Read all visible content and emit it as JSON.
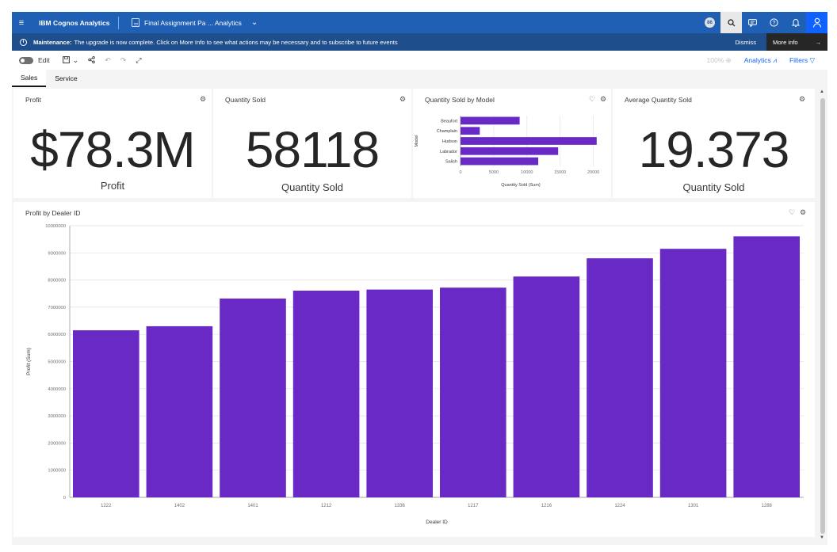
{
  "topbar": {
    "brand": "IBM Cognos Analytics",
    "document_title": "Final Assignment Pa ... Analytics",
    "badge": "86"
  },
  "icons": {
    "menu": "hamburger-icon",
    "document": "dashboard-icon",
    "search": "search-icon",
    "chat": "chat-icon",
    "help": "help-icon",
    "notifications": "bell-icon",
    "user": "user-icon"
  },
  "maintenance": {
    "label": "Maintenance:",
    "message": "The upgrade is now complete. Click on More Info to see what actions may be necessary and to subscribe to future events",
    "dismiss": "Dismiss",
    "more_info": "More info"
  },
  "toolbar": {
    "edit_label": "Edit",
    "zoom": "100%",
    "analytics": "Analytics",
    "filters": "Filters"
  },
  "tabs": [
    {
      "label": "Sales",
      "active": true
    },
    {
      "label": "Service",
      "active": false
    }
  ],
  "widgets": {
    "profit": {
      "title": "Profit",
      "value": "$78.3M",
      "label": "Profit"
    },
    "quantity": {
      "title": "Quantity Sold",
      "value": "58118",
      "label": "Quantity Sold"
    },
    "model_chart": {
      "title": "Quantity Sold by Model"
    },
    "average": {
      "title": "Average Quantity Sold",
      "value": "19.373",
      "label": "Quantity Sold"
    },
    "dealer_chart": {
      "title": "Profit by Dealer ID"
    }
  },
  "colors": {
    "bar": "#6929c4",
    "topbar": "#1f5fb4",
    "maintenance": "#1f4e8c"
  },
  "chart_data": [
    {
      "type": "bar",
      "orientation": "horizontal",
      "title": "Quantity Sold by Model",
      "categories": [
        "Beaufort",
        "Champlain",
        "Hudson",
        "Labrador",
        "Salish"
      ],
      "values": [
        8900,
        2900,
        20500,
        14700,
        11700
      ],
      "xlabel": "Quantity Sold (Sum)",
      "ylabel": "Model",
      "ticks": [
        "0",
        "5000",
        "10000",
        "15000",
        "20000"
      ],
      "xlim": [
        0,
        21000
      ],
      "grid": true
    },
    {
      "type": "bar",
      "title": "Profit by Dealer ID",
      "categories": [
        "1222",
        "1402",
        "1401",
        "1212",
        "1336",
        "1217",
        "1216",
        "1224",
        "1301",
        "1288"
      ],
      "values": [
        6150000,
        6300000,
        7320000,
        7610000,
        7650000,
        7720000,
        8130000,
        8800000,
        9150000,
        9610000
      ],
      "xlabel": "Dealer ID",
      "ylabel": "Profit (Sum)",
      "ticks": [
        "0",
        "1000000",
        "2000000",
        "3000000",
        "4000000",
        "5000000",
        "6000000",
        "7000000",
        "8000000",
        "9000000",
        "10000000"
      ],
      "ylim": [
        0,
        10000000
      ],
      "grid": true
    }
  ]
}
